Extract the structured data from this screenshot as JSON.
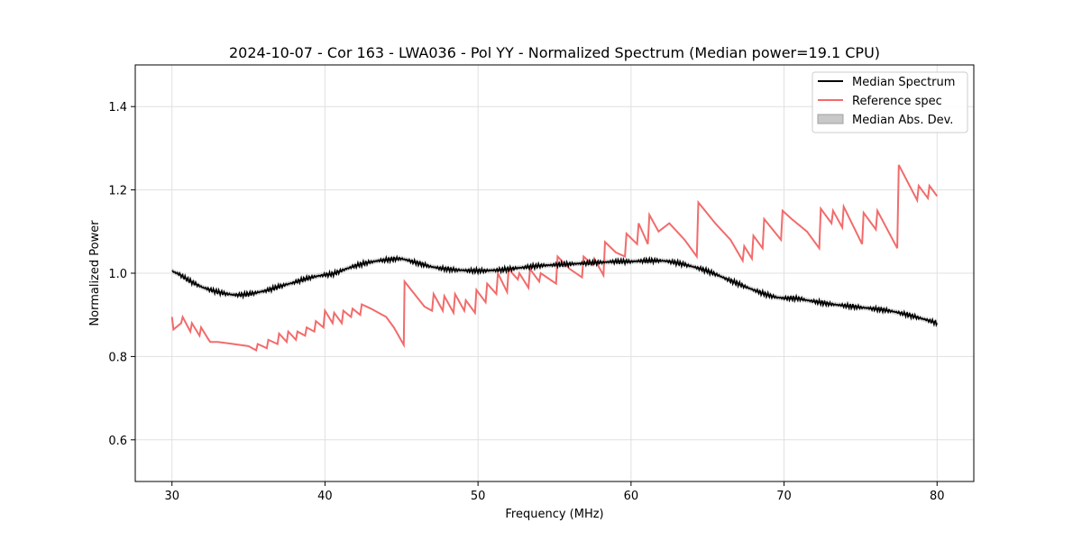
{
  "chart_data": {
    "type": "line",
    "title": "2024-10-07 - Cor 163 - LWA036 - Pol YY - Normalized Spectrum (Median power=19.1 CPU)",
    "xlabel": "Frequency (MHz)",
    "ylabel": "Normalized Power",
    "xlim": [
      27.6,
      82.4
    ],
    "ylim": [
      0.5,
      1.5
    ],
    "xticks": [
      30,
      40,
      50,
      60,
      70,
      80
    ],
    "yticks": [
      0.6,
      0.8,
      1.0,
      1.2,
      1.4
    ],
    "xtick_labels": [
      "30",
      "40",
      "50",
      "60",
      "70",
      "80"
    ],
    "ytick_labels": [
      "0.6",
      "0.8",
      "1.0",
      "1.2",
      "1.4"
    ],
    "grid": true,
    "legend_position": "top-right",
    "legend": [
      "Median Spectrum",
      "Reference spec",
      "Median Abs. Dev."
    ],
    "colors": {
      "median": "#000000",
      "reference": "#f26b6b",
      "mad_fill": "#b0b0b0",
      "grid": "#e0e0e0"
    },
    "series": [
      {
        "name": "Median Spectrum",
        "x": [
          30,
          30.5,
          31,
          31.5,
          32,
          32.5,
          33,
          33.5,
          34,
          34.5,
          35,
          35.5,
          36,
          36.5,
          37,
          37.5,
          38,
          38.5,
          39,
          39.5,
          40,
          40.5,
          41,
          41.5,
          42,
          42.5,
          43,
          43.5,
          44,
          44.5,
          45,
          45.5,
          46,
          46.5,
          47,
          47.5,
          48,
          48.5,
          49,
          49.5,
          50,
          50.5,
          51,
          51.5,
          52,
          52.5,
          53,
          53.5,
          54,
          54.5,
          55,
          55.5,
          56,
          56.5,
          57,
          57.5,
          58,
          58.5,
          59,
          59.5,
          60,
          60.5,
          61,
          61.5,
          62,
          62.5,
          63,
          63.5,
          64,
          64.5,
          65,
          65.5,
          66,
          66.5,
          67,
          67.5,
          68,
          68.5,
          69,
          69.5,
          70,
          70.5,
          71,
          71.5,
          72,
          72.5,
          73,
          73.5,
          74,
          74.5,
          75,
          75.5,
          76,
          76.5,
          77,
          77.5,
          78,
          78.5,
          79,
          79.5,
          80
        ],
        "y": [
          1.005,
          0.997,
          0.985,
          0.975,
          0.966,
          0.96,
          0.955,
          0.951,
          0.948,
          0.948,
          0.95,
          0.953,
          0.957,
          0.962,
          0.968,
          0.973,
          0.978,
          0.984,
          0.989,
          0.993,
          0.996,
          0.998,
          1.005,
          1.012,
          1.018,
          1.023,
          1.027,
          1.03,
          1.032,
          1.034,
          1.035,
          1.03,
          1.025,
          1.02,
          1.015,
          1.012,
          1.01,
          1.008,
          1.007,
          1.006,
          1.006,
          1.006,
          1.007,
          1.008,
          1.01,
          1.012,
          1.014,
          1.016,
          1.018,
          1.019,
          1.02,
          1.021,
          1.022,
          1.023,
          1.024,
          1.025,
          1.026,
          1.027,
          1.028,
          1.028,
          1.028,
          1.029,
          1.03,
          1.03,
          1.03,
          1.028,
          1.025,
          1.021,
          1.016,
          1.011,
          1.005,
          0.998,
          0.99,
          0.982,
          0.975,
          0.967,
          0.96,
          0.953,
          0.947,
          0.942,
          0.94,
          0.94,
          0.939,
          0.935,
          0.932,
          0.929,
          0.926,
          0.924,
          0.922,
          0.92,
          0.918,
          0.916,
          0.914,
          0.912,
          0.909,
          0.905,
          0.901,
          0.896,
          0.891,
          0.886,
          0.88
        ],
        "mad": 0.006
      },
      {
        "name": "Reference spec",
        "x": [
          30,
          30.1,
          30.6,
          30.7,
          31.2,
          31.3,
          31.8,
          31.9,
          32.4,
          32.5,
          33,
          34,
          35,
          35.5,
          35.6,
          36.2,
          36.3,
          36.9,
          37,
          37.5,
          37.6,
          38.1,
          38.2,
          38.7,
          38.8,
          39.3,
          39.4,
          39.9,
          40,
          40.5,
          40.6,
          41.1,
          41.2,
          41.7,
          41.8,
          42.3,
          42.4,
          43,
          43.5,
          44,
          44.5,
          45.15,
          45.2,
          46.5,
          47,
          47.1,
          47.7,
          47.8,
          48.4,
          48.5,
          49.1,
          49.2,
          49.8,
          49.9,
          50.5,
          50.6,
          51.2,
          51.3,
          51.9,
          52,
          52.6,
          52.7,
          53.3,
          53.4,
          54,
          54.1,
          55.1,
          55.2,
          56,
          56.8,
          56.9,
          57.5,
          57.6,
          58.2,
          58.3,
          59,
          59.6,
          59.7,
          60.4,
          60.5,
          61.1,
          61.2,
          61.8,
          62.5,
          63.5,
          64.3,
          64.4,
          65.5,
          66.5,
          67.3,
          67.4,
          67.9,
          68,
          68.6,
          68.7,
          69.8,
          69.9,
          70.5,
          71.5,
          72.3,
          72.4,
          73.1,
          73.2,
          73.8,
          73.9,
          75.1,
          75.2,
          76,
          76.1,
          77.4,
          77.5,
          78.7,
          78.8,
          79.4,
          79.5,
          80
        ],
        "y": [
          0.895,
          0.865,
          0.88,
          0.895,
          0.86,
          0.88,
          0.85,
          0.87,
          0.84,
          0.835,
          0.835,
          0.83,
          0.825,
          0.815,
          0.83,
          0.82,
          0.84,
          0.83,
          0.855,
          0.835,
          0.86,
          0.84,
          0.86,
          0.85,
          0.87,
          0.86,
          0.885,
          0.87,
          0.91,
          0.88,
          0.905,
          0.88,
          0.91,
          0.895,
          0.915,
          0.9,
          0.925,
          0.915,
          0.905,
          0.895,
          0.87,
          0.828,
          0.98,
          0.92,
          0.91,
          0.95,
          0.91,
          0.945,
          0.905,
          0.95,
          0.91,
          0.935,
          0.905,
          0.96,
          0.93,
          0.975,
          0.95,
          1.0,
          0.955,
          1.01,
          0.985,
          1.0,
          0.965,
          1.01,
          0.98,
          1.0,
          0.975,
          1.04,
          1.01,
          0.99,
          1.04,
          1.02,
          1.035,
          0.995,
          1.075,
          1.05,
          1.04,
          1.095,
          1.07,
          1.12,
          1.07,
          1.14,
          1.1,
          1.12,
          1.08,
          1.04,
          1.17,
          1.12,
          1.08,
          1.03,
          1.065,
          1.035,
          1.09,
          1.06,
          1.13,
          1.08,
          1.15,
          1.13,
          1.1,
          1.06,
          1.155,
          1.12,
          1.15,
          1.11,
          1.16,
          1.07,
          1.145,
          1.105,
          1.15,
          1.06,
          1.26,
          1.175,
          1.21,
          1.18,
          1.21,
          1.185
        ]
      }
    ]
  }
}
